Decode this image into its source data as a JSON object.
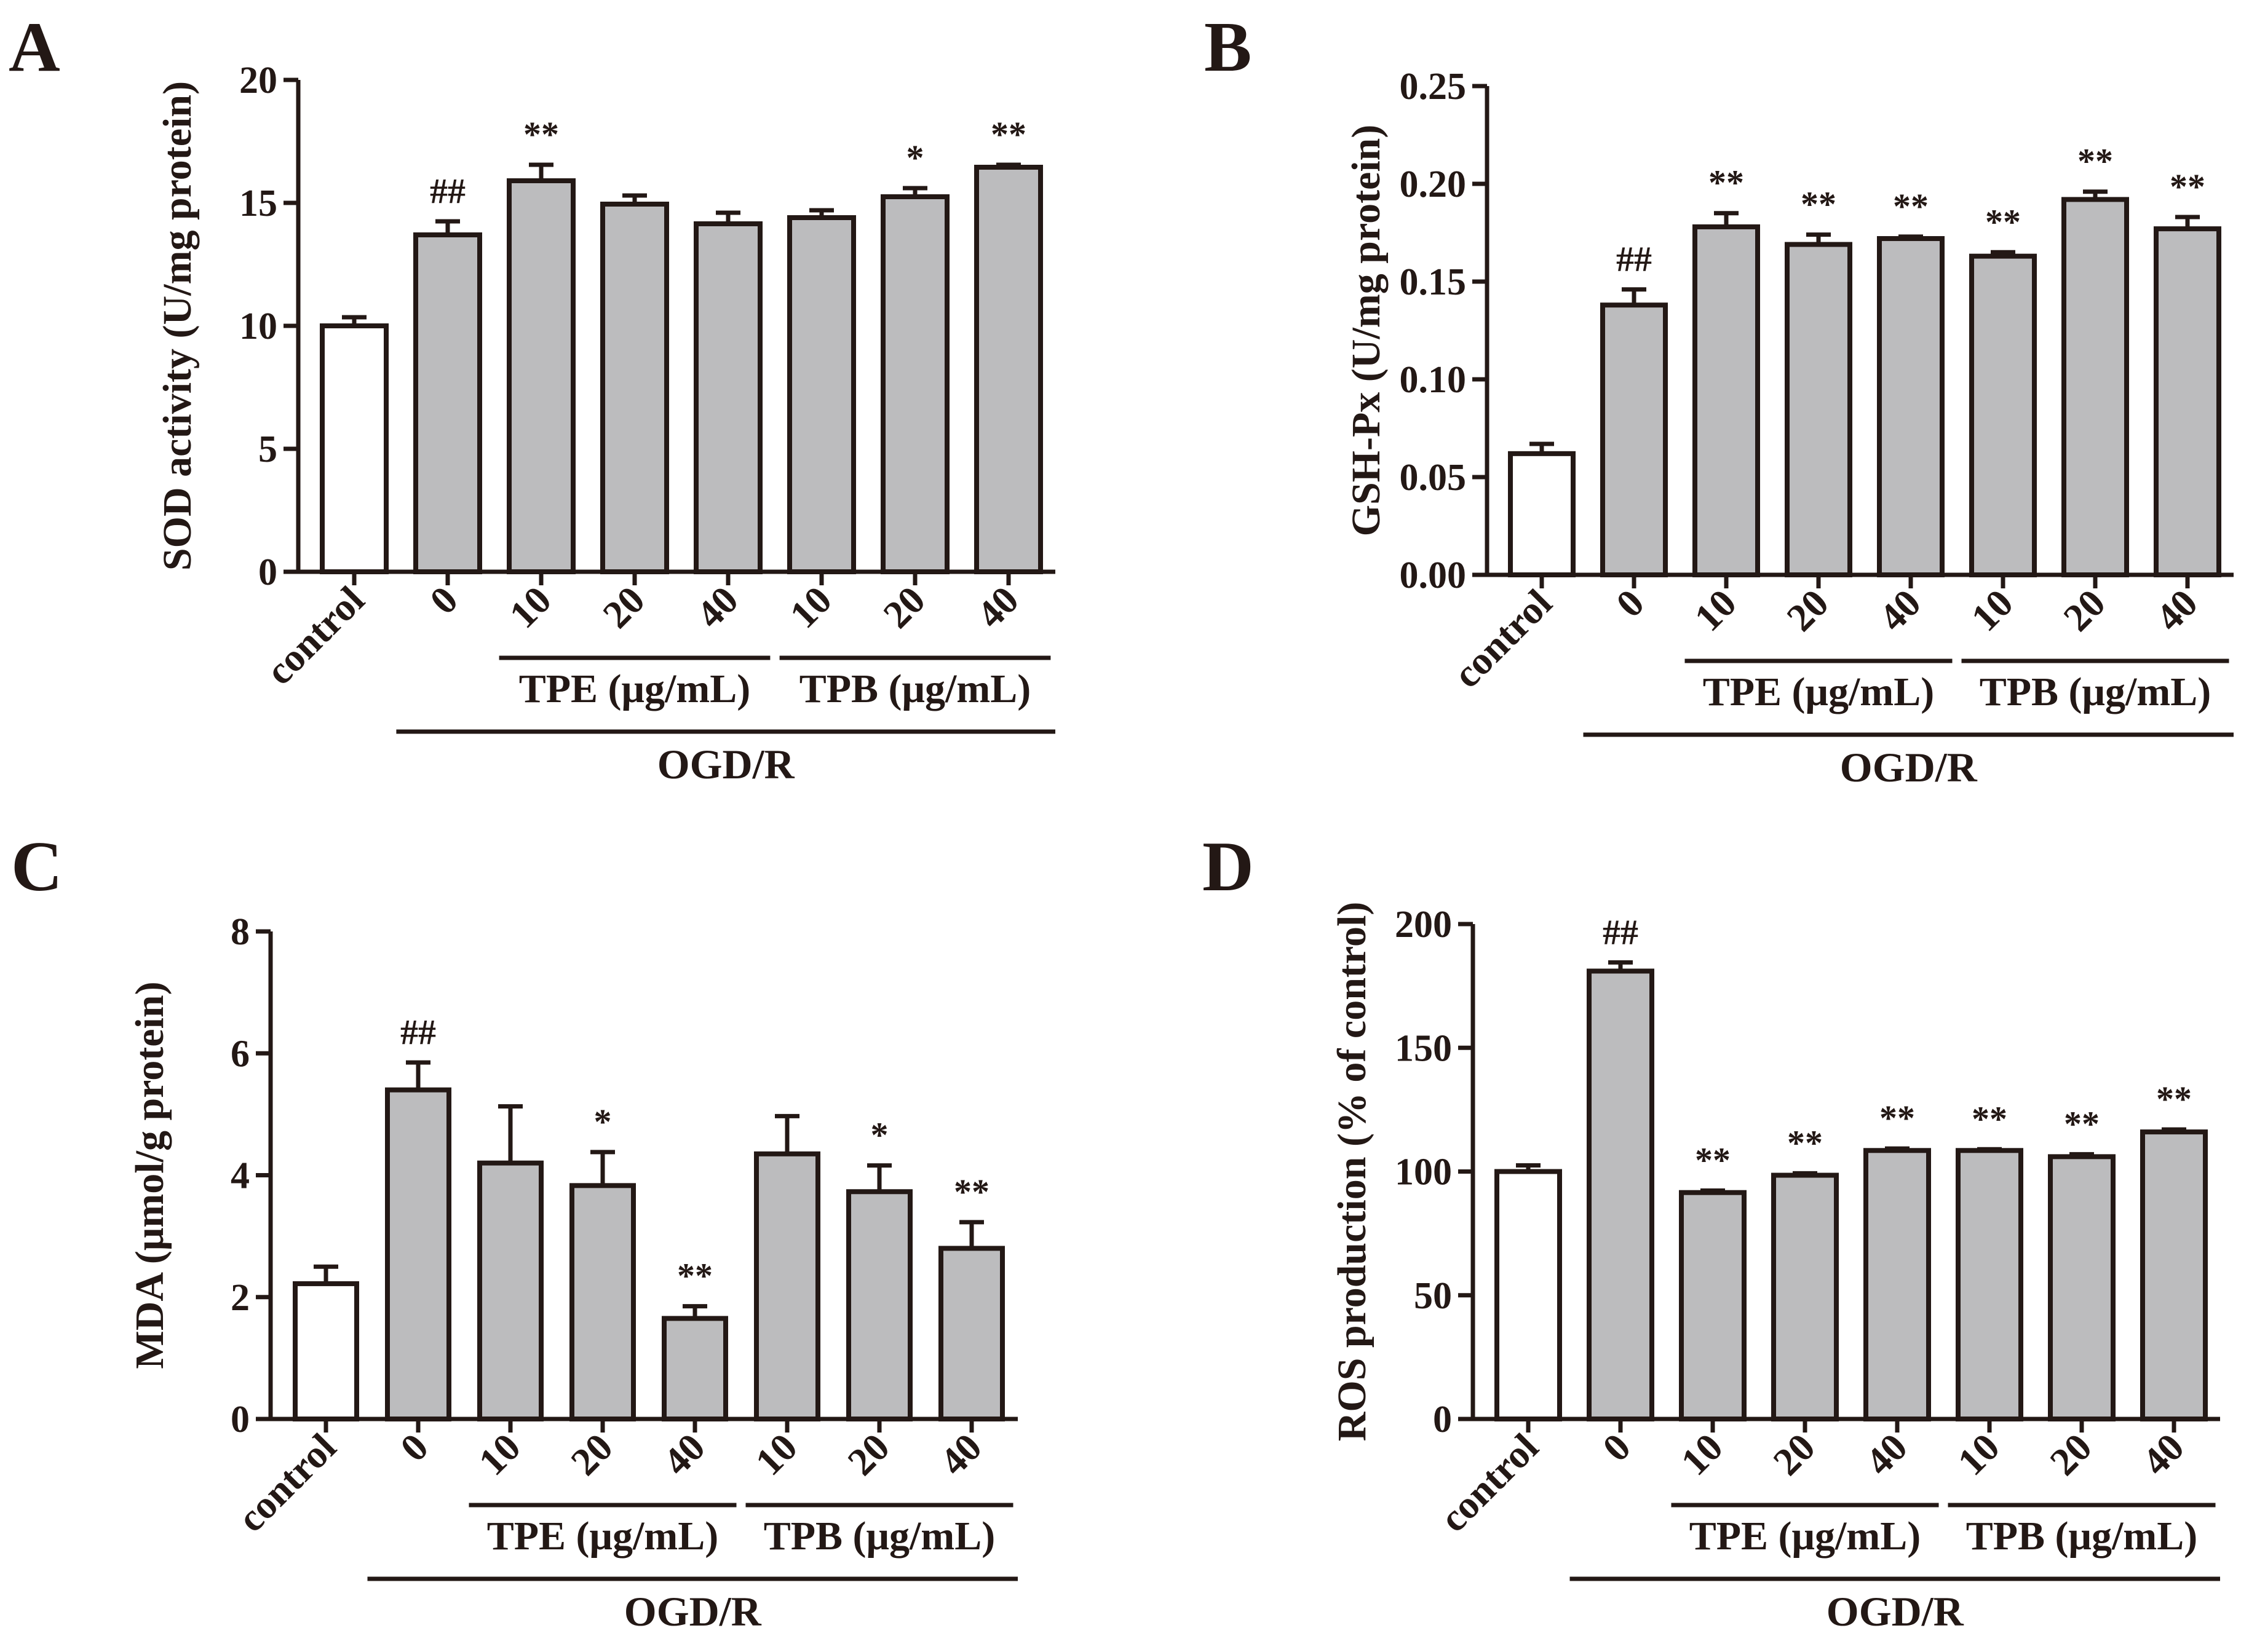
{
  "colors": {
    "control_fill": "#ffffff",
    "treated_fill": "#bcbcbe",
    "ink": "#231815"
  },
  "chart_data": [
    {
      "panel": "A",
      "type": "bar",
      "ylabel": "SOD activity (U/mg protein)",
      "ylim": [
        0,
        20
      ],
      "yticks": [
        0,
        5,
        10,
        15,
        20
      ],
      "ytick_labels": [
        "0",
        "5",
        "10",
        "15",
        "20"
      ],
      "categories": [
        "control",
        "0",
        "10",
        "20",
        "40",
        "10",
        "20",
        "40"
      ],
      "values": [
        10.0,
        13.7,
        15.9,
        14.95,
        14.15,
        14.4,
        15.25,
        16.45
      ],
      "errors": [
        0.35,
        0.55,
        0.65,
        0.35,
        0.45,
        0.3,
        0.35,
        0.1
      ],
      "annotations": [
        "",
        "##",
        "**",
        "",
        "",
        "",
        "*",
        "**"
      ],
      "groups": [
        {
          "label": "TPE (μg/mL)",
          "from": 2,
          "to": 4
        },
        {
          "label": "TPB (μg/mL)",
          "from": 5,
          "to": 7
        }
      ],
      "condition": {
        "label": "OGD/R",
        "from": 1,
        "to": 7
      }
    },
    {
      "panel": "B",
      "type": "bar",
      "ylabel": "GSH-Px (U/mg protein)",
      "ylim": [
        0,
        0.25
      ],
      "yticks": [
        0,
        0.05,
        0.1,
        0.15,
        0.2,
        0.25
      ],
      "ytick_labels": [
        "0.00",
        "0.05",
        "0.10",
        "0.15",
        "0.20",
        "0.25"
      ],
      "categories": [
        "control",
        "0",
        "10",
        "20",
        "40",
        "10",
        "20",
        "40"
      ],
      "values": [
        0.062,
        0.138,
        0.178,
        0.169,
        0.172,
        0.163,
        0.192,
        0.177
      ],
      "errors": [
        0.005,
        0.008,
        0.007,
        0.005,
        0.001,
        0.002,
        0.004,
        0.006
      ],
      "annotations": [
        "",
        "##",
        "**",
        "**",
        "**",
        "**",
        "**",
        "**"
      ],
      "groups": [
        {
          "label": "TPE (μg/mL)",
          "from": 2,
          "to": 4
        },
        {
          "label": "TPB (μg/mL)",
          "from": 5,
          "to": 7
        }
      ],
      "condition": {
        "label": "OGD/R",
        "from": 1,
        "to": 7
      }
    },
    {
      "panel": "C",
      "type": "bar",
      "ylabel": "MDA (μmol/g protein)",
      "ylim": [
        0,
        8
      ],
      "yticks": [
        0,
        2,
        4,
        6,
        8
      ],
      "ytick_labels": [
        "0",
        "2",
        "4",
        "6",
        "8"
      ],
      "categories": [
        "control",
        "0",
        "10",
        "20",
        "40",
        "10",
        "20",
        "40"
      ],
      "values": [
        2.22,
        5.4,
        4.2,
        3.83,
        1.65,
        4.35,
        3.73,
        2.8
      ],
      "errors": [
        0.28,
        0.45,
        0.93,
        0.55,
        0.2,
        0.62,
        0.43,
        0.43
      ],
      "annotations": [
        "",
        "##",
        "",
        "*",
        "**",
        "",
        "*",
        "**"
      ],
      "groups": [
        {
          "label": "TPE (μg/mL)",
          "from": 2,
          "to": 4
        },
        {
          "label": "TPB (μg/mL)",
          "from": 5,
          "to": 7
        }
      ],
      "condition": {
        "label": "OGD/R",
        "from": 1,
        "to": 7
      }
    },
    {
      "panel": "D",
      "type": "bar",
      "ylabel": "ROS production (% of control)",
      "ylim": [
        0,
        200
      ],
      "yticks": [
        0,
        50,
        100,
        150,
        200
      ],
      "ytick_labels": [
        "0",
        "50",
        "100",
        "150",
        "200"
      ],
      "categories": [
        "control",
        "0",
        "10",
        "20",
        "40",
        "10",
        "20",
        "40"
      ],
      "values": [
        100,
        181,
        91.5,
        98.5,
        108.5,
        108.5,
        106,
        116
      ],
      "errors": [
        2.5,
        3.5,
        0.8,
        0.8,
        0.8,
        0.5,
        1,
        1
      ],
      "annotations": [
        "",
        "##",
        "**",
        "**",
        "**",
        "**",
        "**",
        "**"
      ],
      "groups": [
        {
          "label": "TPE (μg/mL)",
          "from": 2,
          "to": 4
        },
        {
          "label": "TPB (μg/mL)",
          "from": 5,
          "to": 7
        }
      ],
      "condition": {
        "label": "OGD/R",
        "from": 1,
        "to": 7
      }
    }
  ]
}
